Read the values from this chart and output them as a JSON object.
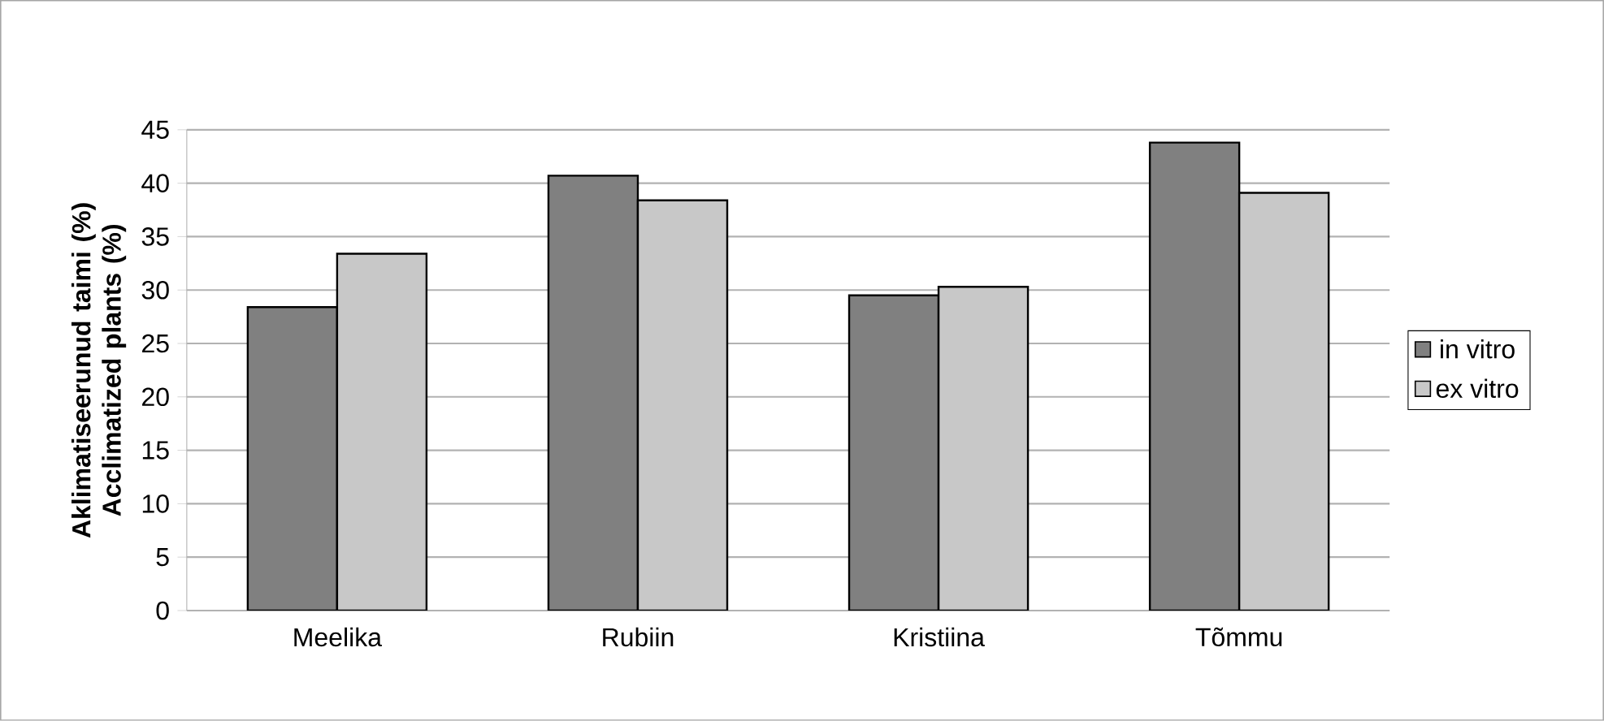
{
  "chart_data": {
    "type": "bar",
    "ylabel": "Aklimatiseerunud taimi (%) Acclimatized plants (%)",
    "categories": [
      "Meelika",
      "Rubiin",
      "Kristiina",
      "Tõmmu"
    ],
    "series": [
      {
        "name": "in vitro",
        "color": "#808080",
        "values": [
          28.4,
          40.7,
          29.5,
          43.8
        ]
      },
      {
        "name": "ex vitro",
        "color": "#c8c8c8",
        "values": [
          33.4,
          38.4,
          30.3,
          39.1
        ]
      }
    ],
    "ylim": [
      0,
      45
    ],
    "yticks": [
      0,
      5,
      10,
      15,
      20,
      25,
      30,
      35,
      40,
      45
    ],
    "grid": "y",
    "legend": "right"
  }
}
